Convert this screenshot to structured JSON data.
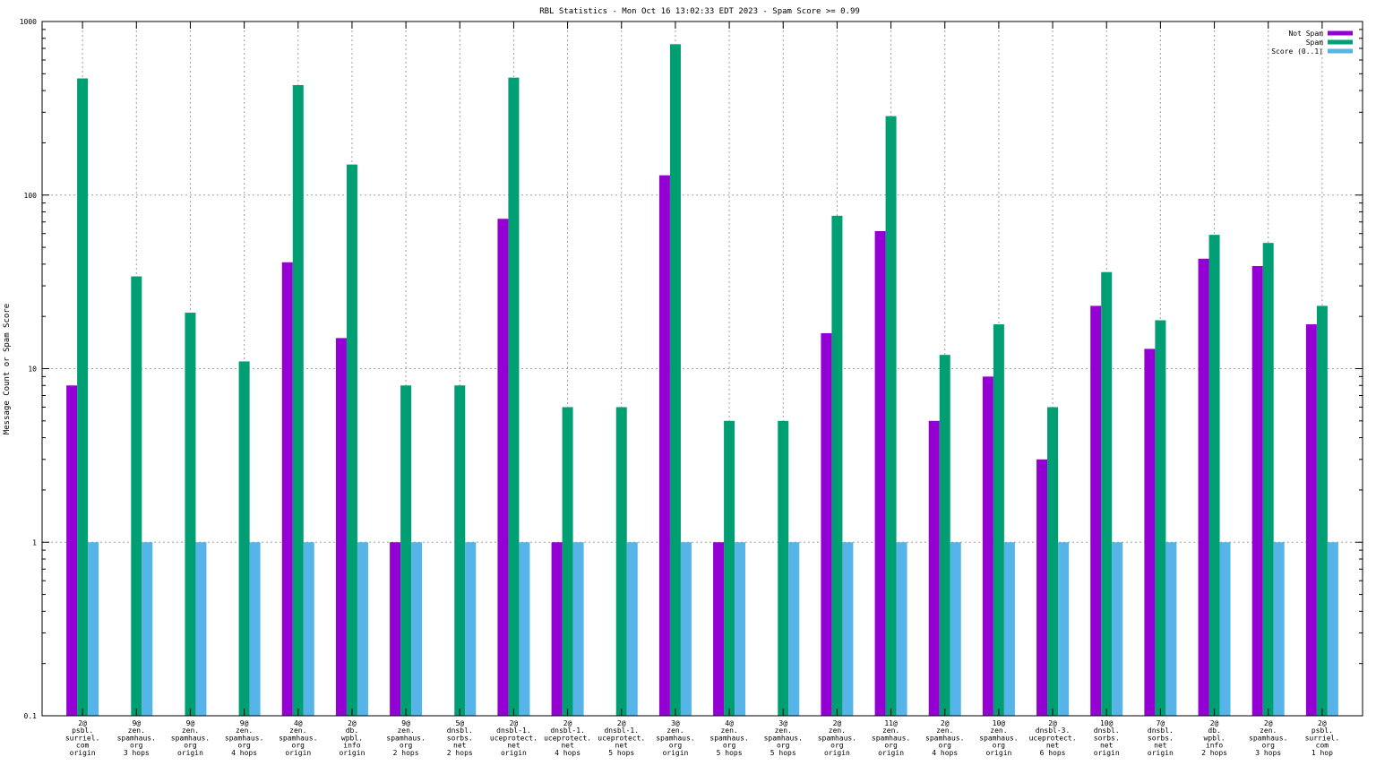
{
  "chart_data": {
    "type": "bar",
    "title": "RBL Statistics - Mon Oct 16 13:02:33 EDT 2023 - Spam Score >= 0.99",
    "ylabel": "Message Count or Spam Score",
    "xlabel": "",
    "yscale": "log",
    "ylim": [
      0.1,
      1000
    ],
    "yticks": [
      0.1,
      1,
      10,
      100,
      1000
    ],
    "ytick_labels": [
      "0.1",
      "1",
      "10",
      "100",
      "1000"
    ],
    "grid": true,
    "legend_position": "top-right",
    "categories": [
      [
        "2@",
        "psbl.",
        "surriel.",
        "com",
        "origin"
      ],
      [
        "9@",
        "zen.",
        "spamhaus.",
        "org",
        "3 hops"
      ],
      [
        "9@",
        "zen.",
        "spamhaus.",
        "org",
        "origin"
      ],
      [
        "9@",
        "zen.",
        "spamhaus.",
        "org",
        "4 hops"
      ],
      [
        "4@",
        "zen.",
        "spamhaus.",
        "org",
        "origin"
      ],
      [
        "2@",
        "db.",
        "wpbl.",
        "info",
        "origin"
      ],
      [
        "9@",
        "zen.",
        "spamhaus.",
        "org",
        "2 hops"
      ],
      [
        "5@",
        "dnsbl.",
        "sorbs.",
        "net",
        "2 hops"
      ],
      [
        "2@",
        "dnsbl-1.",
        "uceprotect.",
        "net",
        "origin"
      ],
      [
        "2@",
        "dnsbl-1.",
        "uceprotect.",
        "net",
        "4 hops"
      ],
      [
        "2@",
        "dnsbl-1.",
        "uceprotect.",
        "net",
        "5 hops"
      ],
      [
        "3@",
        "zen.",
        "spamhaus.",
        "org",
        "origin"
      ],
      [
        "4@",
        "zen.",
        "spamhaus.",
        "org",
        "5 hops"
      ],
      [
        "3@",
        "zen.",
        "spamhaus.",
        "org",
        "5 hops"
      ],
      [
        "2@",
        "zen.",
        "spamhaus.",
        "org",
        "origin"
      ],
      [
        "11@",
        "zen.",
        "spamhaus.",
        "org",
        "origin"
      ],
      [
        "2@",
        "zen.",
        "spamhaus.",
        "org",
        "4 hops"
      ],
      [
        "10@",
        "zen.",
        "spamhaus.",
        "org",
        "origin"
      ],
      [
        "2@",
        "dnsbl-3.",
        "uceprotect.",
        "net",
        "6 hops"
      ],
      [
        "10@",
        "dnsbl.",
        "sorbs.",
        "net",
        "origin"
      ],
      [
        "7@",
        "dnsbl.",
        "sorbs.",
        "net",
        "origin"
      ],
      [
        "2@",
        "db.",
        "wpbl.",
        "info",
        "2 hops"
      ],
      [
        "2@",
        "zen.",
        "spamhaus.",
        "org",
        "3 hops"
      ],
      [
        "2@",
        "psbl.",
        "surriel.",
        "com",
        "1 hop"
      ]
    ],
    "series": [
      {
        "name": "Not Spam",
        "color": "#9400d3",
        "values": [
          8,
          0,
          0,
          0,
          41,
          15,
          1,
          0,
          73,
          1,
          0,
          130,
          1,
          0,
          16,
          62,
          5,
          9,
          3,
          23,
          13,
          43,
          39,
          18
        ]
      },
      {
        "name": "Spam",
        "color": "#009e73",
        "values": [
          470,
          34,
          21,
          11,
          430,
          150,
          8,
          8,
          475,
          6,
          6,
          740,
          5,
          5,
          76,
          285,
          12,
          18,
          6,
          36,
          19,
          59,
          53,
          23
        ]
      },
      {
        "name": "Score (0..1)",
        "color": "#56b4e9",
        "values": [
          1,
          1,
          1,
          1,
          1,
          1,
          1,
          1,
          1,
          1,
          1,
          1,
          1,
          1,
          1,
          1,
          1,
          1,
          1,
          1,
          1,
          1,
          1,
          1
        ]
      }
    ]
  }
}
